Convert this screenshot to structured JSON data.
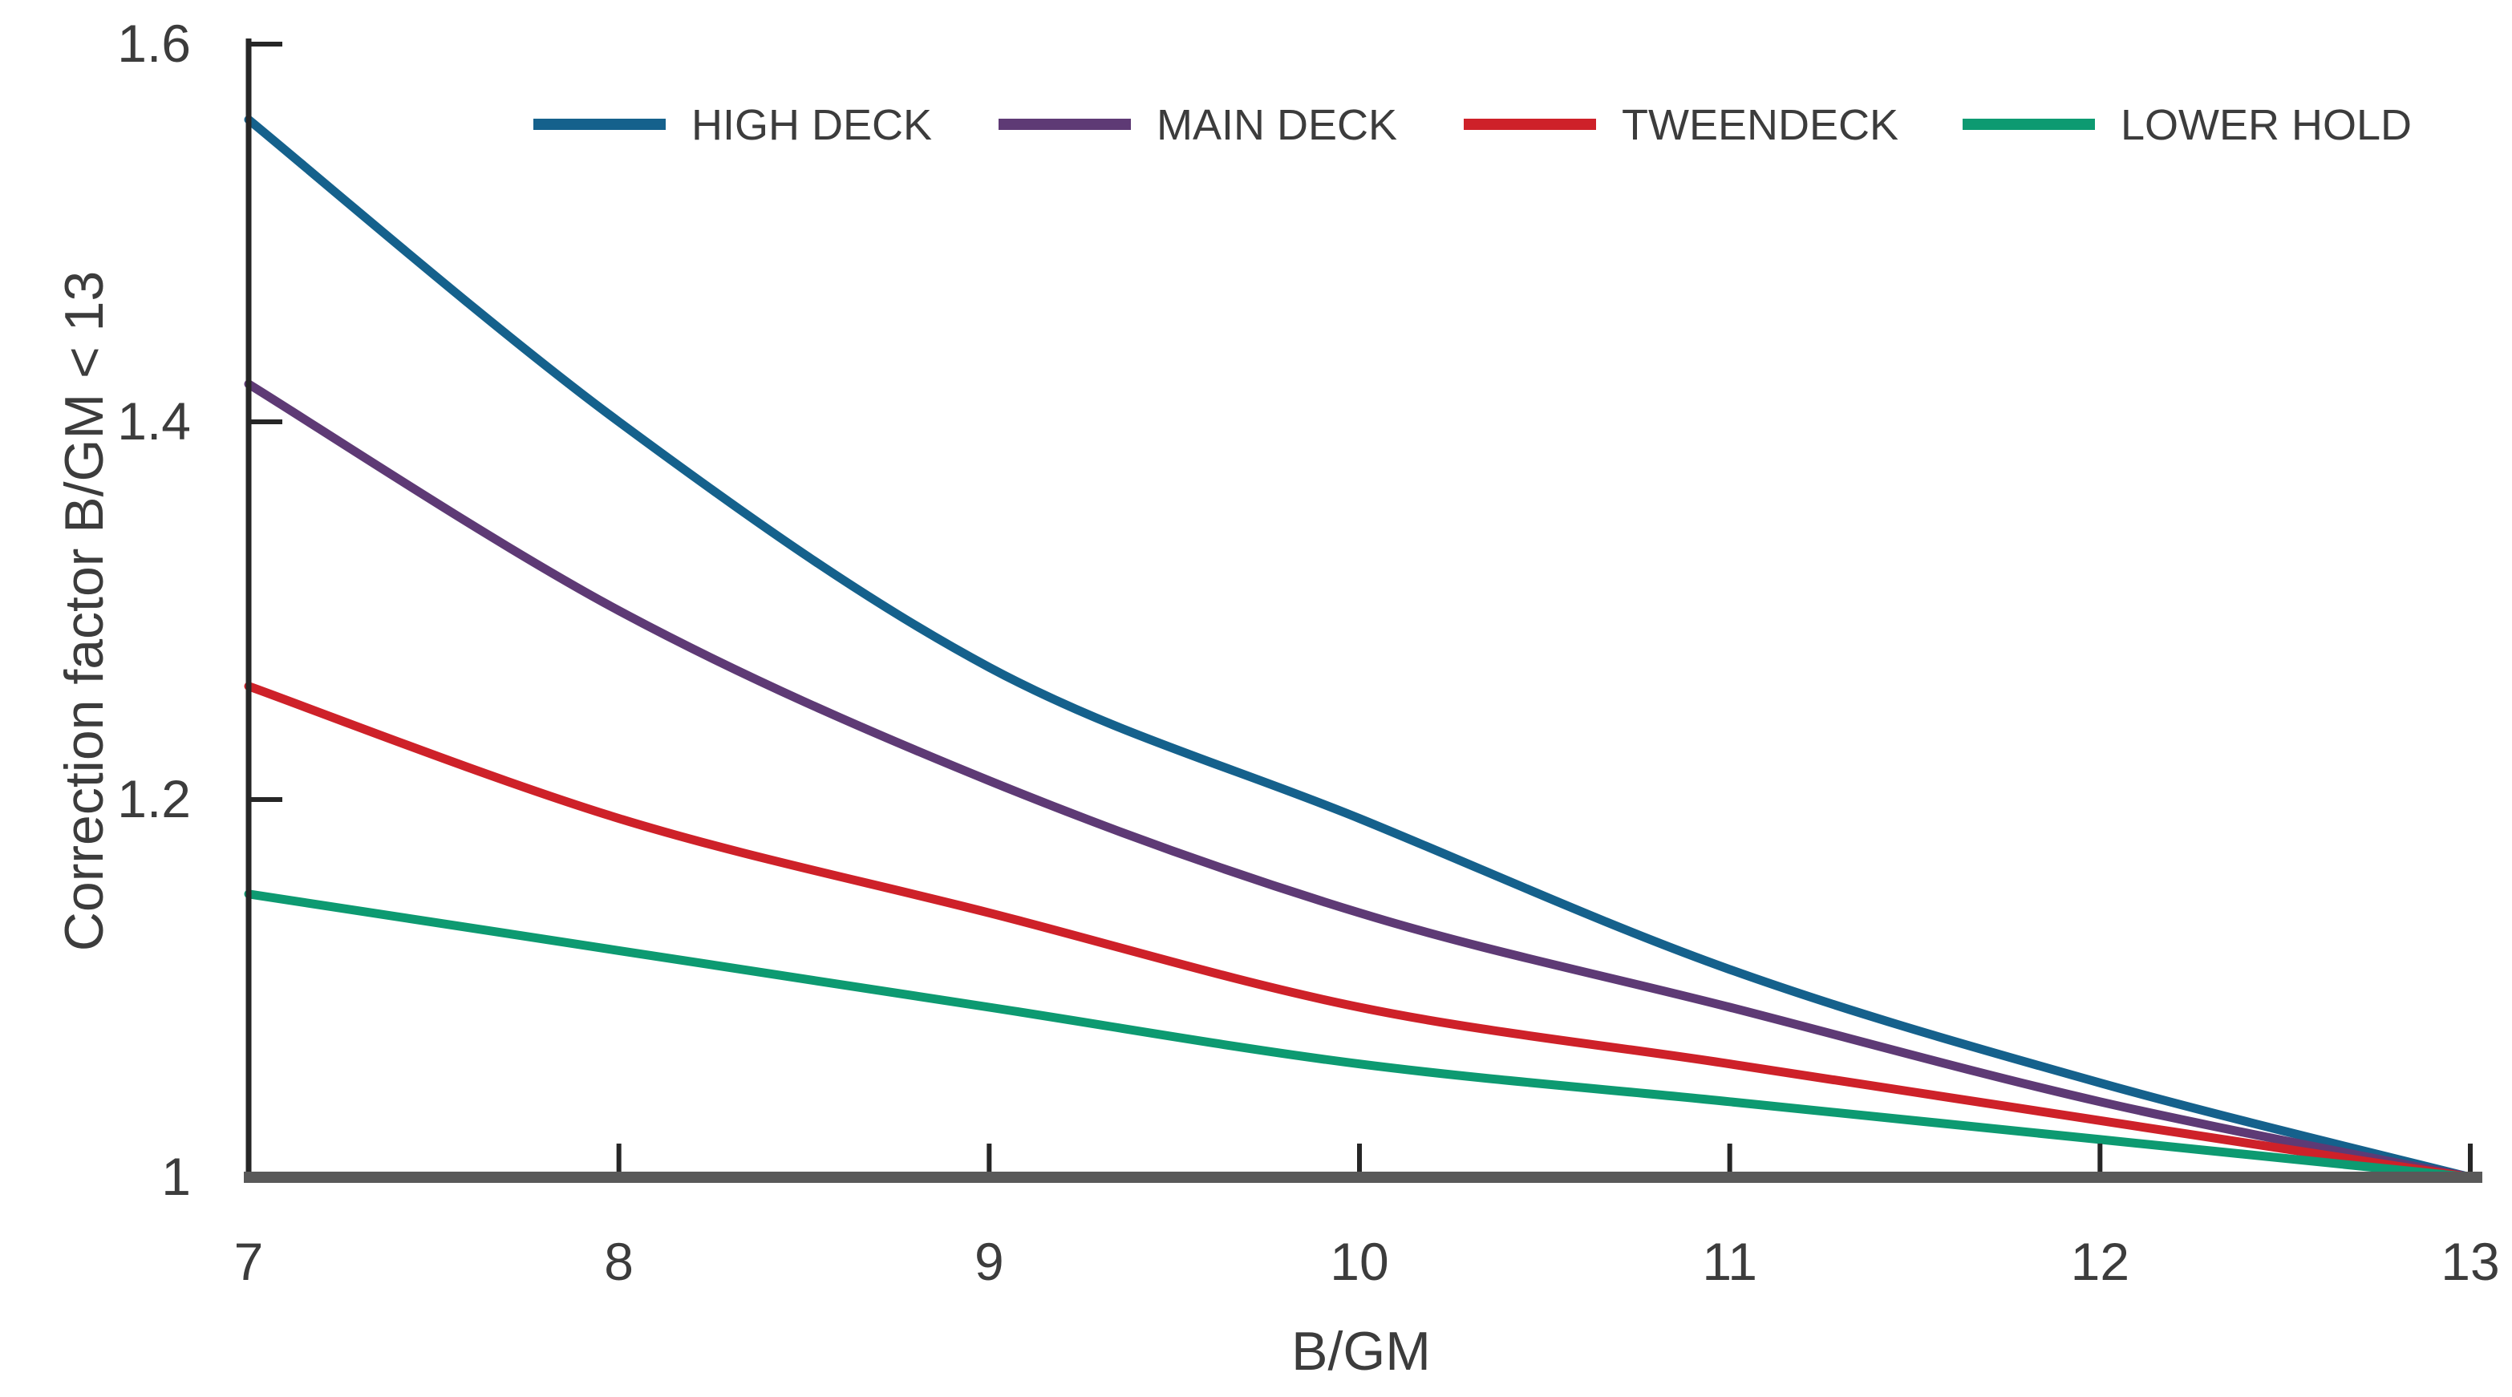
{
  "chart_data": {
    "type": "line",
    "title": "",
    "xlabel": "B/GM",
    "ylabel": "Correction factor B/GM < 13",
    "x": [
      7,
      8,
      9,
      10,
      11,
      12,
      13
    ],
    "xlim": [
      7,
      13
    ],
    "ylim": [
      1.0,
      1.6
    ],
    "x_ticks": [
      7,
      8,
      9,
      10,
      11,
      12,
      13
    ],
    "x_tick_labels": [
      "7",
      "8",
      "9",
      "10",
      "11",
      "12",
      "13"
    ],
    "y_ticks": [
      1.0,
      1.2,
      1.4,
      1.6
    ],
    "y_tick_labels": [
      "1",
      "1.2",
      "1.4",
      "1.6"
    ],
    "grid": false,
    "legend_position": "top",
    "series": [
      {
        "name": "HIGH DECK",
        "color": "#15618C",
        "values": [
          1.56,
          1.4,
          1.27,
          1.19,
          1.11,
          1.05,
          1.0
        ]
      },
      {
        "name": "MAIN DECK",
        "color": "#5E3A75",
        "values": [
          1.42,
          1.3,
          1.21,
          1.14,
          1.09,
          1.04,
          1.0
        ]
      },
      {
        "name": "TWEENDECK",
        "color": "#CE2129",
        "values": [
          1.26,
          1.19,
          1.14,
          1.09,
          1.06,
          1.03,
          1.0
        ]
      },
      {
        "name": "LOWER HOLD",
        "color": "#0D9A71",
        "values": [
          1.15,
          1.12,
          1.09,
          1.06,
          1.04,
          1.02,
          1.0
        ]
      }
    ],
    "colors": {
      "y_axis": "#262626",
      "x_axis": "#595959",
      "tick": "#262626",
      "text": "#3c3c3c",
      "background": "#ffffff"
    }
  }
}
